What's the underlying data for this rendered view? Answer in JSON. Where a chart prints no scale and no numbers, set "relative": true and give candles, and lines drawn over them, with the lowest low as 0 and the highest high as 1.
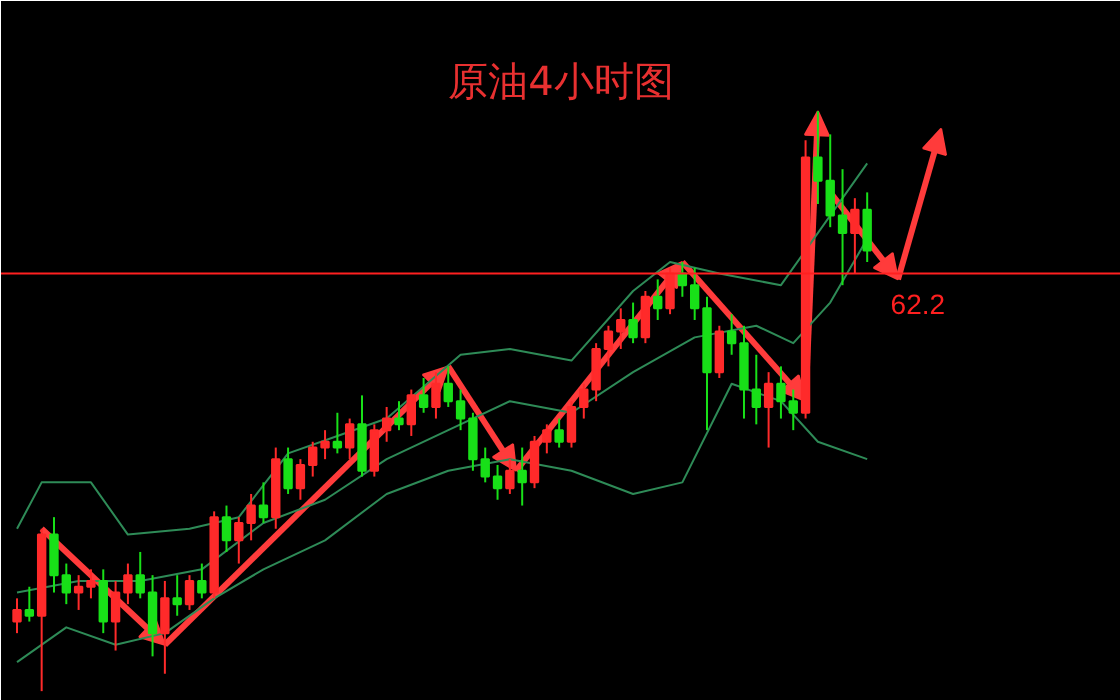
{
  "chart_data": {
    "type": "candlestick",
    "title": "原油4小时图",
    "relative": true,
    "categories": [
      null,
      null,
      null,
      null,
      null,
      null,
      null,
      null,
      null,
      null,
      null,
      null,
      null,
      null,
      null,
      null,
      null,
      null,
      null,
      null,
      null,
      null,
      null,
      null,
      null,
      null,
      null,
      null,
      null,
      null,
      null,
      null,
      null,
      null,
      null,
      null,
      null,
      null,
      null,
      null,
      null,
      null,
      null,
      null,
      null,
      null,
      null,
      null,
      null,
      null,
      null,
      null,
      null,
      null,
      null,
      null,
      null,
      null,
      null,
      null,
      null,
      null,
      null,
      null,
      null,
      null,
      null,
      null,
      null,
      null
    ],
    "ohlc": [
      [
        0.12,
        0.16,
        0.1,
        0.14
      ],
      [
        0.14,
        0.18,
        0.12,
        0.13
      ],
      [
        0.13,
        0.28,
        0.0,
        0.27
      ],
      [
        0.27,
        0.3,
        0.17,
        0.2
      ],
      [
        0.2,
        0.22,
        0.15,
        0.17
      ],
      [
        0.17,
        0.2,
        0.14,
        0.18
      ],
      [
        0.18,
        0.21,
        0.16,
        0.19
      ],
      [
        0.19,
        0.21,
        0.1,
        0.12
      ],
      [
        0.12,
        0.19,
        0.07,
        0.17
      ],
      [
        0.17,
        0.22,
        0.15,
        0.2
      ],
      [
        0.2,
        0.24,
        0.16,
        0.17
      ],
      [
        0.17,
        0.2,
        0.06,
        0.1
      ],
      [
        0.1,
        0.19,
        0.03,
        0.16
      ],
      [
        0.16,
        0.2,
        0.13,
        0.15
      ],
      [
        0.15,
        0.2,
        0.14,
        0.19
      ],
      [
        0.19,
        0.22,
        0.16,
        0.17
      ],
      [
        0.17,
        0.31,
        0.16,
        0.3
      ],
      [
        0.3,
        0.32,
        0.24,
        0.26
      ],
      [
        0.26,
        0.3,
        0.22,
        0.29
      ],
      [
        0.29,
        0.34,
        0.26,
        0.32
      ],
      [
        0.32,
        0.36,
        0.29,
        0.3
      ],
      [
        0.3,
        0.42,
        0.28,
        0.4
      ],
      [
        0.4,
        0.42,
        0.34,
        0.35
      ],
      [
        0.35,
        0.4,
        0.33,
        0.39
      ],
      [
        0.39,
        0.43,
        0.37,
        0.42
      ],
      [
        0.42,
        0.45,
        0.4,
        0.43
      ],
      [
        0.43,
        0.48,
        0.41,
        0.42
      ],
      [
        0.42,
        0.47,
        0.4,
        0.46
      ],
      [
        0.46,
        0.51,
        0.37,
        0.38
      ],
      [
        0.38,
        0.46,
        0.37,
        0.45
      ],
      [
        0.45,
        0.49,
        0.43,
        0.47
      ],
      [
        0.47,
        0.5,
        0.45,
        0.46
      ],
      [
        0.46,
        0.52,
        0.44,
        0.51
      ],
      [
        0.51,
        0.54,
        0.48,
        0.49
      ],
      [
        0.49,
        0.55,
        0.47,
        0.53
      ],
      [
        0.53,
        0.56,
        0.49,
        0.5
      ],
      [
        0.5,
        0.52,
        0.45,
        0.47
      ],
      [
        0.47,
        0.48,
        0.38,
        0.4
      ],
      [
        0.4,
        0.42,
        0.36,
        0.37
      ],
      [
        0.37,
        0.39,
        0.33,
        0.35
      ],
      [
        0.35,
        0.4,
        0.34,
        0.38
      ],
      [
        0.38,
        0.42,
        0.32,
        0.36
      ],
      [
        0.36,
        0.44,
        0.35,
        0.43
      ],
      [
        0.43,
        0.46,
        0.41,
        0.45
      ],
      [
        0.45,
        0.47,
        0.42,
        0.43
      ],
      [
        0.43,
        0.5,
        0.42,
        0.49
      ],
      [
        0.49,
        0.53,
        0.47,
        0.52
      ],
      [
        0.52,
        0.6,
        0.5,
        0.59
      ],
      [
        0.59,
        0.63,
        0.56,
        0.62
      ],
      [
        0.62,
        0.66,
        0.59,
        0.64
      ],
      [
        0.64,
        0.67,
        0.6,
        0.61
      ],
      [
        0.61,
        0.69,
        0.6,
        0.68
      ],
      [
        0.68,
        0.71,
        0.64,
        0.66
      ],
      [
        0.66,
        0.73,
        0.65,
        0.72
      ],
      [
        0.72,
        0.74,
        0.68,
        0.7
      ],
      [
        0.7,
        0.73,
        0.64,
        0.66
      ],
      [
        0.66,
        0.68,
        0.45,
        0.55
      ],
      [
        0.55,
        0.63,
        0.54,
        0.62
      ],
      [
        0.62,
        0.65,
        0.58,
        0.6
      ],
      [
        0.6,
        0.63,
        0.47,
        0.52
      ],
      [
        0.52,
        0.58,
        0.46,
        0.49
      ],
      [
        0.49,
        0.55,
        0.42,
        0.53
      ],
      [
        0.53,
        0.56,
        0.47,
        0.5
      ],
      [
        0.5,
        0.52,
        0.45,
        0.48
      ],
      [
        0.48,
        0.95,
        0.47,
        0.92
      ],
      [
        0.92,
        1.0,
        0.84,
        0.88
      ],
      [
        0.88,
        0.96,
        0.8,
        0.82
      ],
      [
        0.82,
        0.9,
        0.7,
        0.79
      ],
      [
        0.79,
        0.85,
        0.72,
        0.83
      ],
      [
        0.83,
        0.86,
        0.74,
        0.76
      ]
    ],
    "series": [
      {
        "type": "line",
        "color": "#2e8b57",
        "values": [
          0.28,
          null,
          0.36,
          null,
          null,
          null,
          0.36,
          null,
          null,
          0.27,
          null,
          null,
          null,
          null,
          0.28,
          null,
          null,
          null,
          0.3,
          null,
          null,
          null,
          0.41,
          null,
          null,
          null,
          0.44,
          null,
          null,
          null,
          0.47,
          null,
          null,
          null,
          null,
          null,
          0.58,
          null,
          null,
          null,
          0.59,
          null,
          null,
          null,
          null,
          0.57,
          null,
          null,
          null,
          null,
          0.69,
          null,
          null,
          0.74,
          null,
          null,
          null,
          0.72,
          null,
          null,
          null,
          null,
          0.7,
          null,
          null,
          null,
          null,
          null,
          null,
          0.91
        ]
      },
      {
        "type": "line",
        "color": "#2e8b57",
        "values": [
          0.17,
          null,
          null,
          null,
          null,
          0.19,
          null,
          null,
          null,
          null,
          0.19,
          null,
          null,
          null,
          null,
          0.21,
          null,
          null,
          null,
          null,
          0.29,
          null,
          null,
          null,
          null,
          0.33,
          null,
          null,
          null,
          null,
          0.4,
          null,
          null,
          null,
          null,
          0.45,
          null,
          null,
          null,
          null,
          0.5,
          null,
          null,
          null,
          null,
          0.48,
          null,
          null,
          null,
          null,
          0.55,
          null,
          null,
          null,
          null,
          0.61,
          null,
          null,
          null,
          null,
          0.63,
          null,
          null,
          0.6,
          null,
          null,
          0.67,
          null,
          null,
          0.78
        ]
      },
      {
        "type": "line",
        "color": "#2e8b57",
        "values": [
          0.05,
          null,
          null,
          null,
          0.11,
          null,
          null,
          null,
          0.08,
          null,
          null,
          null,
          0.1,
          null,
          null,
          null,
          0.16,
          null,
          null,
          null,
          0.21,
          null,
          null,
          null,
          null,
          0.26,
          null,
          null,
          null,
          null,
          0.34,
          null,
          null,
          null,
          null,
          0.38,
          null,
          null,
          null,
          null,
          0.4,
          null,
          null,
          null,
          null,
          0.38,
          null,
          null,
          null,
          null,
          0.34,
          null,
          null,
          null,
          0.36,
          null,
          null,
          null,
          0.53,
          null,
          null,
          null,
          0.5,
          null,
          null,
          0.43,
          null,
          null,
          null,
          0.4
        ]
      }
    ],
    "ref_lines": [
      {
        "axis": "y",
        "value": 0.72,
        "color": "#ff2020"
      }
    ],
    "annotations": [
      "62.2"
    ]
  }
}
